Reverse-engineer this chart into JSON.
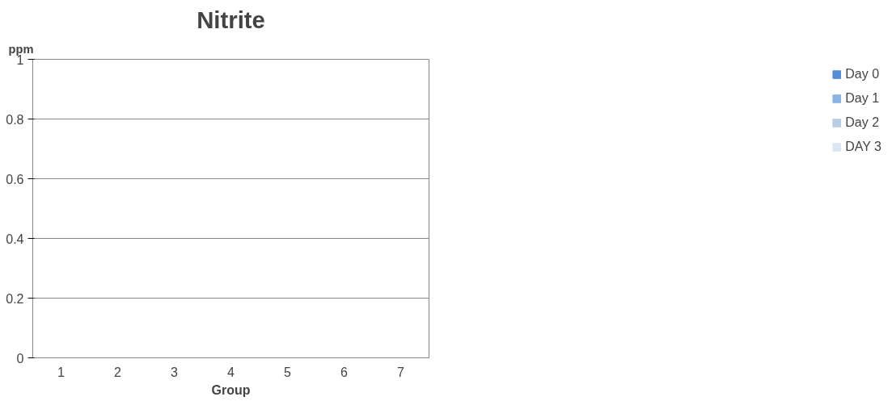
{
  "chart_data": {
    "type": "bar",
    "title": "Nitrite",
    "xlabel": "Group",
    "ylabel": "ppm",
    "categories": [
      "1",
      "2",
      "3",
      "4",
      "5",
      "6",
      "7"
    ],
    "series": [
      {
        "name": "Day 0",
        "color": "#558ed5",
        "values": [
          0,
          0,
          0,
          0,
          0,
          0,
          0
        ]
      },
      {
        "name": "Day 1",
        "color": "#8db3e2",
        "values": [
          0,
          0,
          0,
          0,
          0,
          0,
          0
        ]
      },
      {
        "name": "Day 2",
        "color": "#b9cde5",
        "values": [
          0,
          0,
          0,
          0,
          0,
          0,
          0
        ]
      },
      {
        "name": "DAY 3",
        "color": "#dce6f2",
        "values": [
          0,
          0,
          0,
          0,
          0,
          0,
          0
        ]
      }
    ],
    "ylim": [
      0,
      1
    ],
    "yticks": [
      0,
      0.2,
      0.4,
      0.6,
      0.8,
      1
    ],
    "grid": "y",
    "legend": "right"
  }
}
